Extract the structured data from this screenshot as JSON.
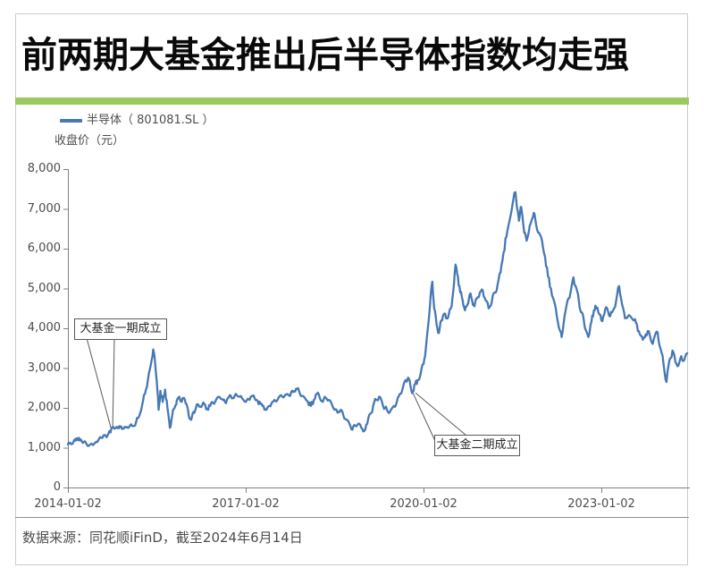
{
  "page": {
    "title": "前两期大基金推出后半导体指数均走强",
    "footer": "数据来源：同花顺iFinD，截至2024年6月14日",
    "accent_green": "#9aca5e",
    "line_blue": "#4678b4"
  },
  "chart_data": {
    "type": "line",
    "title": "前两期大基金推出后半导体指数均走强",
    "legend": [
      {
        "name": "半导体（ 801081.SL ）",
        "color": "#4678b4"
      }
    ],
    "ylabel": "收盘价（元）",
    "xlabel": "",
    "grid": false,
    "legend_position": "top-left",
    "x_axis": {
      "tick_labels": [
        "2014-01-02",
        "2017-01-02",
        "2020-01-02",
        "2023-01-02"
      ],
      "tick_positions_years": [
        2014.0,
        2017.0,
        2020.0,
        2023.0
      ],
      "range_years": [
        2014.0,
        2024.5
      ]
    },
    "y_axis": {
      "tick_labels": [
        "0",
        "1,000",
        "2,000",
        "3,000",
        "4,000",
        "5,000",
        "6,000",
        "7,000",
        "8,000"
      ],
      "tick_values": [
        0,
        1000,
        2000,
        3000,
        4000,
        5000,
        6000,
        7000,
        8000
      ],
      "range": [
        0,
        8000
      ]
    },
    "annotations": [
      {
        "label": "大基金一期成立",
        "anchor_year": 2014.74,
        "anchor_value": 1500
      },
      {
        "label": "大基金二期成立",
        "anchor_year": 2019.82,
        "anchor_value": 2400
      }
    ],
    "series": [
      {
        "name": "半导体（801081.SL）收盘价",
        "color": "#4678b4",
        "points": [
          [
            2014.0,
            1080
          ],
          [
            2014.04,
            1120
          ],
          [
            2014.08,
            1100
          ],
          [
            2014.12,
            1175
          ],
          [
            2014.16,
            1240
          ],
          [
            2014.2,
            1180
          ],
          [
            2014.24,
            1140
          ],
          [
            2014.28,
            1160
          ],
          [
            2014.32,
            1080
          ],
          [
            2014.36,
            1060
          ],
          [
            2014.4,
            1100
          ],
          [
            2014.44,
            1090
          ],
          [
            2014.48,
            1150
          ],
          [
            2014.52,
            1210
          ],
          [
            2014.56,
            1250
          ],
          [
            2014.6,
            1310
          ],
          [
            2014.64,
            1290
          ],
          [
            2014.68,
            1340
          ],
          [
            2014.71,
            1400
          ],
          [
            2014.74,
            1500
          ],
          [
            2014.78,
            1480
          ],
          [
            2014.82,
            1520
          ],
          [
            2014.86,
            1490
          ],
          [
            2014.9,
            1530
          ],
          [
            2014.94,
            1480
          ],
          [
            2015.0,
            1520
          ],
          [
            2015.05,
            1560
          ],
          [
            2015.1,
            1540
          ],
          [
            2015.15,
            1640
          ],
          [
            2015.2,
            1780
          ],
          [
            2015.25,
            2050
          ],
          [
            2015.3,
            2350
          ],
          [
            2015.35,
            2700
          ],
          [
            2015.4,
            3100
          ],
          [
            2015.44,
            3470
          ],
          [
            2015.47,
            3150
          ],
          [
            2015.5,
            2650
          ],
          [
            2015.53,
            1950
          ],
          [
            2015.56,
            2430
          ],
          [
            2015.6,
            2150
          ],
          [
            2015.64,
            2460
          ],
          [
            2015.68,
            2000
          ],
          [
            2015.72,
            1500
          ],
          [
            2015.76,
            1800
          ],
          [
            2015.8,
            2000
          ],
          [
            2015.84,
            2200
          ],
          [
            2015.88,
            2280
          ],
          [
            2015.92,
            2150
          ],
          [
            2015.96,
            2250
          ],
          [
            2016.0,
            2100
          ],
          [
            2016.04,
            1800
          ],
          [
            2016.08,
            1700
          ],
          [
            2016.12,
            1900
          ],
          [
            2016.16,
            2000
          ],
          [
            2016.2,
            2080
          ],
          [
            2016.25,
            2020
          ],
          [
            2016.3,
            2100
          ],
          [
            2016.35,
            1980
          ],
          [
            2016.4,
            2050
          ],
          [
            2016.45,
            2120
          ],
          [
            2016.5,
            2200
          ],
          [
            2016.55,
            2280
          ],
          [
            2016.6,
            2220
          ],
          [
            2016.65,
            2150
          ],
          [
            2016.7,
            2250
          ],
          [
            2016.75,
            2300
          ],
          [
            2016.8,
            2250
          ],
          [
            2016.85,
            2320
          ],
          [
            2016.9,
            2280
          ],
          [
            2016.95,
            2220
          ],
          [
            2017.0,
            2150
          ],
          [
            2017.05,
            2220
          ],
          [
            2017.1,
            2300
          ],
          [
            2017.15,
            2250
          ],
          [
            2017.2,
            2180
          ],
          [
            2017.25,
            2100
          ],
          [
            2017.3,
            2050
          ],
          [
            2017.35,
            1950
          ],
          [
            2017.4,
            2050
          ],
          [
            2017.45,
            2150
          ],
          [
            2017.5,
            2180
          ],
          [
            2017.55,
            2250
          ],
          [
            2017.6,
            2320
          ],
          [
            2017.65,
            2280
          ],
          [
            2017.7,
            2350
          ],
          [
            2017.75,
            2300
          ],
          [
            2017.8,
            2400
          ],
          [
            2017.85,
            2480
          ],
          [
            2017.9,
            2420
          ],
          [
            2017.95,
            2300
          ],
          [
            2018.0,
            2250
          ],
          [
            2018.05,
            2150
          ],
          [
            2018.1,
            2050
          ],
          [
            2018.15,
            2200
          ],
          [
            2018.2,
            2350
          ],
          [
            2018.25,
            2250
          ],
          [
            2018.3,
            2150
          ],
          [
            2018.35,
            2250
          ],
          [
            2018.4,
            2200
          ],
          [
            2018.45,
            2100
          ],
          [
            2018.5,
            1950
          ],
          [
            2018.55,
            1880
          ],
          [
            2018.6,
            1950
          ],
          [
            2018.65,
            1800
          ],
          [
            2018.7,
            1700
          ],
          [
            2018.75,
            1600
          ],
          [
            2018.8,
            1450
          ],
          [
            2018.85,
            1550
          ],
          [
            2018.9,
            1600
          ],
          [
            2018.95,
            1500
          ],
          [
            2019.0,
            1420
          ],
          [
            2019.05,
            1600
          ],
          [
            2019.1,
            1850
          ],
          [
            2019.15,
            2050
          ],
          [
            2019.2,
            2200
          ],
          [
            2019.25,
            2280
          ],
          [
            2019.3,
            2150
          ],
          [
            2019.35,
            2000
          ],
          [
            2019.4,
            1900
          ],
          [
            2019.45,
            1950
          ],
          [
            2019.5,
            2050
          ],
          [
            2019.55,
            2150
          ],
          [
            2019.6,
            2350
          ],
          [
            2019.65,
            2500
          ],
          [
            2019.7,
            2700
          ],
          [
            2019.74,
            2760
          ],
          [
            2019.78,
            2550
          ],
          [
            2019.82,
            2400
          ],
          [
            2019.86,
            2600
          ],
          [
            2019.9,
            2700
          ],
          [
            2019.95,
            2850
          ],
          [
            2020.0,
            3100
          ],
          [
            2020.04,
            3500
          ],
          [
            2020.08,
            4100
          ],
          [
            2020.12,
            4800
          ],
          [
            2020.15,
            5170
          ],
          [
            2020.18,
            4500
          ],
          [
            2020.22,
            4100
          ],
          [
            2020.26,
            3880
          ],
          [
            2020.3,
            4200
          ],
          [
            2020.34,
            4350
          ],
          [
            2020.38,
            4250
          ],
          [
            2020.42,
            4300
          ],
          [
            2020.46,
            4500
          ],
          [
            2020.5,
            4900
          ],
          [
            2020.54,
            5600
          ],
          [
            2020.58,
            5300
          ],
          [
            2020.62,
            4900
          ],
          [
            2020.66,
            4700
          ],
          [
            2020.7,
            4450
          ],
          [
            2020.74,
            4600
          ],
          [
            2020.78,
            4850
          ],
          [
            2020.82,
            4700
          ],
          [
            2020.86,
            4550
          ],
          [
            2020.9,
            4750
          ],
          [
            2020.95,
            4900
          ],
          [
            2021.0,
            4950
          ],
          [
            2021.05,
            4700
          ],
          [
            2021.1,
            4500
          ],
          [
            2021.15,
            4650
          ],
          [
            2021.2,
            4900
          ],
          [
            2021.25,
            5100
          ],
          [
            2021.3,
            5400
          ],
          [
            2021.35,
            5900
          ],
          [
            2021.4,
            6300
          ],
          [
            2021.45,
            6700
          ],
          [
            2021.5,
            7100
          ],
          [
            2021.55,
            7420
          ],
          [
            2021.58,
            7000
          ],
          [
            2021.61,
            6700
          ],
          [
            2021.64,
            7050
          ],
          [
            2021.67,
            6800
          ],
          [
            2021.7,
            6400
          ],
          [
            2021.74,
            6200
          ],
          [
            2021.78,
            6450
          ],
          [
            2021.82,
            6700
          ],
          [
            2021.86,
            6900
          ],
          [
            2021.9,
            6600
          ],
          [
            2021.95,
            6400
          ],
          [
            2022.0,
            6200
          ],
          [
            2022.05,
            5800
          ],
          [
            2022.1,
            5300
          ],
          [
            2022.15,
            5000
          ],
          [
            2022.2,
            4700
          ],
          [
            2022.25,
            4300
          ],
          [
            2022.3,
            3950
          ],
          [
            2022.33,
            3780
          ],
          [
            2022.38,
            4300
          ],
          [
            2022.43,
            4700
          ],
          [
            2022.48,
            4900
          ],
          [
            2022.53,
            5280
          ],
          [
            2022.58,
            5000
          ],
          [
            2022.62,
            4700
          ],
          [
            2022.66,
            4400
          ],
          [
            2022.7,
            4250
          ],
          [
            2022.74,
            3950
          ],
          [
            2022.78,
            3780
          ],
          [
            2022.82,
            4100
          ],
          [
            2022.86,
            4300
          ],
          [
            2022.9,
            4570
          ],
          [
            2022.95,
            4400
          ],
          [
            2023.0,
            4200
          ],
          [
            2023.05,
            4350
          ],
          [
            2023.1,
            4500
          ],
          [
            2023.15,
            4300
          ],
          [
            2023.2,
            4450
          ],
          [
            2023.25,
            4700
          ],
          [
            2023.3,
            5060
          ],
          [
            2023.35,
            4600
          ],
          [
            2023.4,
            4250
          ],
          [
            2023.45,
            4300
          ],
          [
            2023.5,
            4280
          ],
          [
            2023.55,
            4200
          ],
          [
            2023.6,
            4100
          ],
          [
            2023.65,
            3850
          ],
          [
            2023.7,
            3710
          ],
          [
            2023.75,
            3850
          ],
          [
            2023.8,
            3930
          ],
          [
            2023.85,
            3640
          ],
          [
            2023.9,
            3800
          ],
          [
            2023.95,
            3900
          ],
          [
            2024.0,
            3480
          ],
          [
            2024.05,
            3100
          ],
          [
            2024.1,
            2650
          ],
          [
            2024.15,
            3200
          ],
          [
            2024.2,
            3440
          ],
          [
            2024.25,
            3150
          ],
          [
            2024.3,
            3060
          ],
          [
            2024.35,
            3300
          ],
          [
            2024.4,
            3200
          ],
          [
            2024.45,
            3370
          ]
        ]
      }
    ]
  }
}
